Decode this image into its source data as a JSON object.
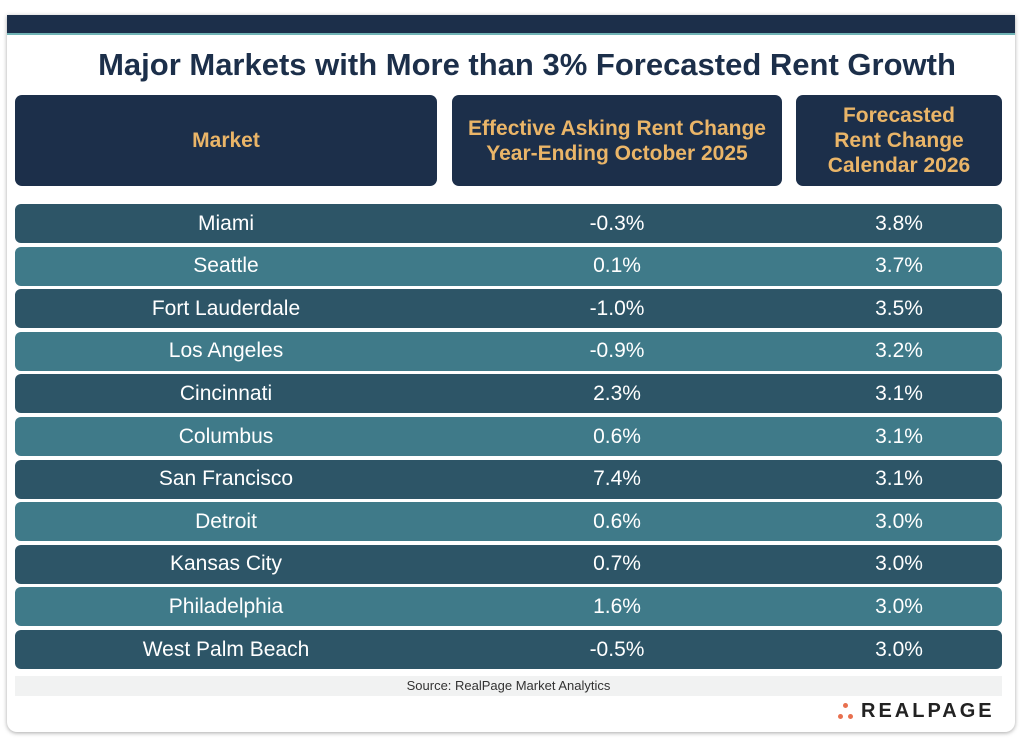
{
  "chart_data": {
    "type": "table",
    "title": "Major Markets with More than 3% Forecasted Rent Growth",
    "columns": [
      "Market",
      "Effective Asking Rent Change Year-Ending October 2025",
      "Forecasted Rent Change Calendar 2026"
    ],
    "header_lines": {
      "col2": [
        "Effective Asking Rent Change",
        "Year-Ending October 2025"
      ],
      "col3": [
        "Forecasted",
        "Rent Change",
        "Calendar 2026"
      ]
    },
    "rows": [
      [
        "Miami",
        "-0.3%",
        "3.8%"
      ],
      [
        "Seattle",
        "0.1%",
        "3.7%"
      ],
      [
        "Fort Lauderdale",
        "-1.0%",
        "3.5%"
      ],
      [
        "Los Angeles",
        "-0.9%",
        "3.2%"
      ],
      [
        "Cincinnati",
        "2.3%",
        "3.1%"
      ],
      [
        "Columbus",
        "0.6%",
        "3.1%"
      ],
      [
        "San Francisco",
        "7.4%",
        "3.1%"
      ],
      [
        "Detroit",
        "0.6%",
        "3.0%"
      ],
      [
        "Kansas City",
        "0.7%",
        "3.0%"
      ],
      [
        "Philadelphia",
        "1.6%",
        "3.0%"
      ],
      [
        "West Palm Beach",
        "-0.5%",
        "3.0%"
      ]
    ],
    "source": "Source: RealPage Market Analytics"
  },
  "logo": "REALPAGE",
  "colors": {
    "navy": "#1c2f4a",
    "header_text": "#eab568",
    "row_dark": "#2d5567",
    "row_light": "#3f7a89",
    "logo_dots": "#e8704f"
  }
}
